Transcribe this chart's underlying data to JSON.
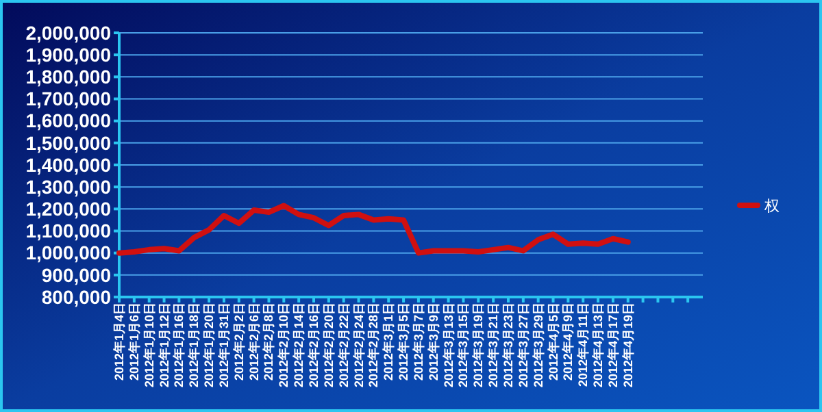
{
  "chart_data": {
    "type": "line",
    "categories": [
      "2012年1月4日",
      "2012年1月6日",
      "2012年1月10日",
      "2012年1月12日",
      "2012年1月16日",
      "2012年1月18日",
      "2012年1月20日",
      "2012年1月31日",
      "2012年2月2日",
      "2012年2月6日",
      "2012年2月8日",
      "2012年2月10日",
      "2012年2月14日",
      "2012年2月16日",
      "2012年2月20日",
      "2012年2月22日",
      "2012年2月24日",
      "2012年2月28日",
      "2012年3月1日",
      "2012年3月5日",
      "2012年3月7日",
      "2012年3月9日",
      "2012年3月13日",
      "2012年3月15日",
      "2012年3月19日",
      "2012年3月21日",
      "2012年3月23日",
      "2012年3月27日",
      "2012年3月29日",
      "2012年4月5日",
      "2012年4月9日",
      "2012年4月11日",
      "2012年4月13日",
      "2012年4月17日",
      "2012年4月19日",
      null,
      null,
      null,
      null
    ],
    "series": [
      {
        "name": "权",
        "color": "#d01010",
        "values": [
          1000000,
          1005000,
          1015000,
          1020000,
          1010000,
          1070000,
          1105000,
          1170000,
          1135000,
          1195000,
          1185000,
          1215000,
          1175000,
          1160000,
          1125000,
          1170000,
          1175000,
          1150000,
          1155000,
          1150000,
          1000000,
          1010000,
          1010000,
          1010000,
          1005000,
          1015000,
          1025000,
          1010000,
          1060000,
          1085000,
          1040000,
          1045000,
          1040000,
          1065000,
          1050000,
          null,
          null,
          null,
          null
        ]
      }
    ],
    "ylim": [
      800000,
      2000000
    ],
    "yticks": [
      {
        "value": 800000,
        "label": "800,000"
      },
      {
        "value": 900000,
        "label": "900,000"
      },
      {
        "value": 1000000,
        "label": "1,000,000"
      },
      {
        "value": 1100000,
        "label": "1,100,000"
      },
      {
        "value": 1200000,
        "label": "1,200,000"
      },
      {
        "value": 1300000,
        "label": "1,300,000"
      },
      {
        "value": 1400000,
        "label": "1,400,000"
      },
      {
        "value": 1500000,
        "label": "1,500,000"
      },
      {
        "value": 1600000,
        "label": "1,600,000"
      },
      {
        "value": 1700000,
        "label": "1,700,000"
      },
      {
        "value": 1800000,
        "label": "1,800,000"
      },
      {
        "value": 1900000,
        "label": "1,900,000"
      },
      {
        "value": 2000000,
        "label": "2,000,000"
      }
    ],
    "grid": "y",
    "legend": "right",
    "marker": "none",
    "line_style": "solid"
  }
}
